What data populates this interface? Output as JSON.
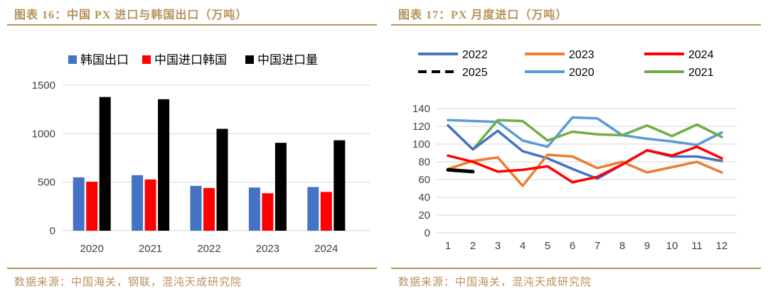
{
  "page": {
    "background": "#ffffff",
    "accent_color": "#B6925A"
  },
  "left_panel": {
    "title": "图表 16：中国 PX 进口与韩国出口（万吨）",
    "source": "数据来源：中国海关，钢联，混沌天成研究院"
  },
  "right_panel": {
    "title": "图表 17：PX 月度进口（万吨）",
    "source": "数据来源：中国海关，混沌天成研究院"
  },
  "chart_data": [
    {
      "type": "bar",
      "title": "中国 PX 进口与韩国出口（万吨）",
      "categories": [
        "2020",
        "2021",
        "2022",
        "2023",
        "2024"
      ],
      "series": [
        {
          "name": "韩国出口",
          "color": "#4472C4",
          "values": [
            550,
            572,
            462,
            445,
            450
          ]
        },
        {
          "name": "中国进口韩国",
          "color": "#FF0000",
          "values": [
            505,
            528,
            440,
            386,
            400
          ]
        },
        {
          "name": "中国进口量",
          "color": "#000000",
          "values": [
            1378,
            1355,
            1050,
            906,
            932
          ]
        }
      ],
      "xlabel": "",
      "ylabel": "",
      "ylim": [
        0,
        1500
      ],
      "yticks": [
        0,
        500,
        1000,
        1500
      ],
      "grid": true,
      "legend_position": "top",
      "gridline_color": "#D6D6D6",
      "tick_label_color": "#404040"
    },
    {
      "type": "line",
      "title": "PX 月度进口（万吨）",
      "x": [
        1,
        2,
        3,
        4,
        5,
        6,
        7,
        8,
        9,
        10,
        11,
        12
      ],
      "series": [
        {
          "name": "2022",
          "color": "#4472C4",
          "dash": false,
          "z": 3,
          "values": [
            121,
            94,
            115,
            92,
            84,
            72,
            61,
            77,
            93,
            86,
            86,
            81
          ]
        },
        {
          "name": "2023",
          "color": "#ED7D31",
          "dash": false,
          "z": 4,
          "values": [
            72,
            81,
            85,
            53,
            88,
            86,
            73,
            80,
            68,
            74,
            80,
            68
          ]
        },
        {
          "name": "2024",
          "color": "#FF0000",
          "dash": false,
          "z": 5,
          "values": [
            87,
            80,
            69,
            71,
            75,
            57,
            63,
            77,
            93,
            87,
            97,
            84
          ]
        },
        {
          "name": "2025",
          "color": "#000000",
          "dash": true,
          "z": 6,
          "values": [
            71,
            69
          ]
        },
        {
          "name": "2020",
          "color": "#5B9BD5",
          "dash": false,
          "z": 1,
          "values": [
            127,
            126,
            125,
            104,
            97,
            130,
            129,
            110,
            106,
            103,
            99,
            113
          ]
        },
        {
          "name": "2021",
          "color": "#70AD47",
          "dash": false,
          "z": 2,
          "values": [
            121,
            94,
            127,
            126,
            104,
            114,
            111,
            110,
            121,
            109,
            122,
            108
          ]
        }
      ],
      "xlabel": "",
      "ylabel": "",
      "ylim": [
        0,
        140
      ],
      "yticks": [
        0,
        20,
        40,
        60,
        80,
        100,
        120,
        140
      ],
      "grid": true,
      "legend_position": "top",
      "gridline_color": "#D6D6D6",
      "tick_label_color": "#404040"
    }
  ]
}
